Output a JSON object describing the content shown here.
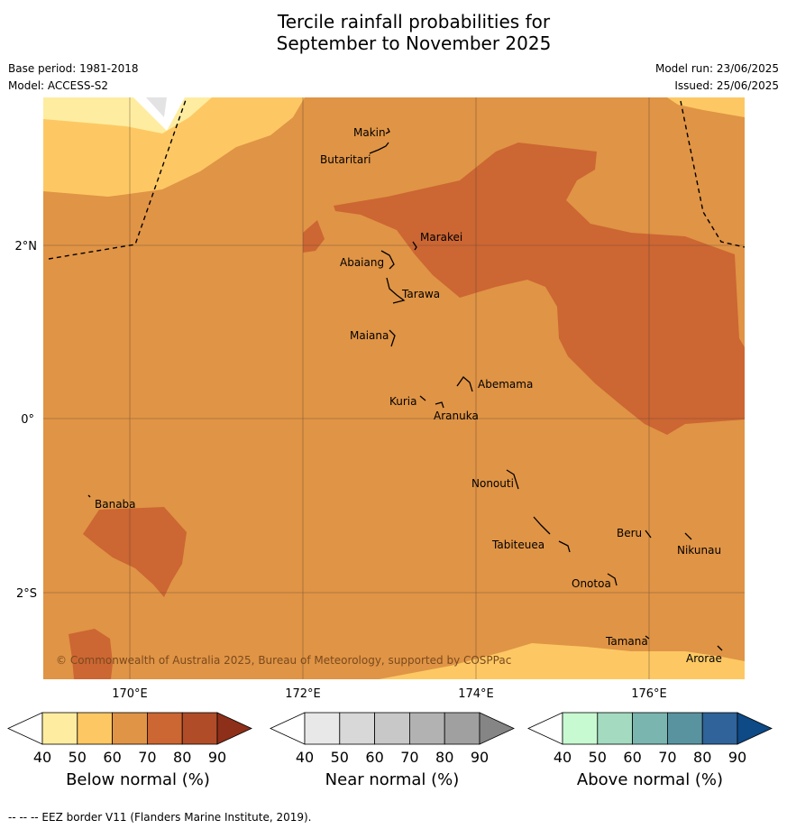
{
  "title": {
    "line1": "Tercile rainfall probabilities for",
    "line2": "September to November 2025"
  },
  "meta": {
    "base_period": "Base period: 1981-2018",
    "model": "Model: ACCESS-S2",
    "model_run": "Model run: 23/06/2025",
    "issued": "Issued: 25/06/2025"
  },
  "axes": {
    "lon": [
      "170°E",
      "172°E",
      "174°E",
      "176°E"
    ],
    "lat": [
      "2°N",
      "0°",
      "2°S"
    ]
  },
  "places": {
    "makin": "Makin",
    "butaritari": "Butaritari",
    "marakei": "Marakei",
    "abaiang": "Abaiang",
    "tarawa": "Tarawa",
    "maiana": "Maiana",
    "abemama": "Abemama",
    "kuria": "Kuria",
    "aranuka": "Aranuka",
    "nonouti": "Nonouti",
    "banaba": "Banaba",
    "beru": "Beru",
    "nikunau": "Nikunau",
    "tabiteuea": "Tabiteuea",
    "onotoa": "Onotoa",
    "tamana": "Tamana",
    "arorae": "Arorae"
  },
  "copyright": "© Commonwealth of Australia 2025, Bureau of Meteorology, supported by COSPPac",
  "colorbars": {
    "ticks": [
      "40",
      "50",
      "60",
      "70",
      "80",
      "90"
    ],
    "below": {
      "title": "Below normal (%)",
      "colors": [
        "#ffffff",
        "#feeda0",
        "#fdc863",
        "#e09445",
        "#cc6633",
        "#b04d28",
        "#8e2f1a"
      ]
    },
    "near": {
      "title": "Near normal (%)",
      "colors": [
        "#ffffff",
        "#e8e8e8",
        "#d8d8d8",
        "#c8c8c8",
        "#b2b2b2",
        "#a0a0a0",
        "#858585"
      ]
    },
    "above": {
      "title": "Above normal (%)",
      "colors": [
        "#ffffff",
        "#c8fad2",
        "#a4dac0",
        "#7ab5b0",
        "#5a93a0",
        "#2f6399",
        "#0d4a86"
      ]
    }
  },
  "footer": "--  --  -- EEZ border V11 (Flanders Marine Institute, 2019)."
}
